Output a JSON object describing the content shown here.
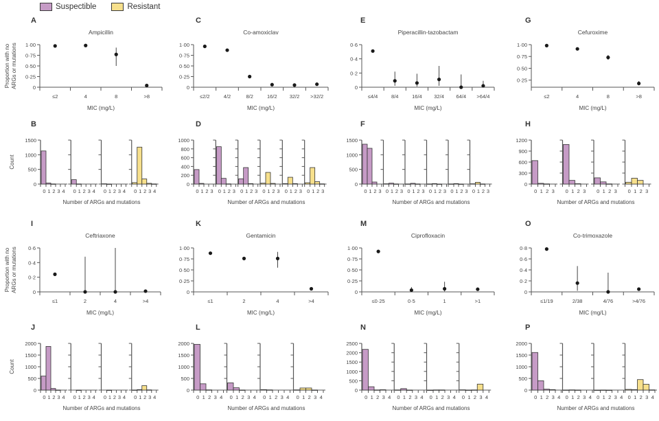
{
  "legend": [
    {
      "label": "Suspectible",
      "color": "#c69bc6"
    },
    {
      "label": "Resistant",
      "color": "#f7e08c"
    }
  ],
  "colors": {
    "susceptible": "#c69bc6",
    "resistant": "#f7e08c",
    "axis": "#555555",
    "text": "#444444",
    "bar_edge": "#333333"
  },
  "chart_data": [
    {
      "panel": "A",
      "type": "scatter",
      "title": "Ampicillin",
      "xlabel": "MIC (mg/L)",
      "ylabel": "Proportion with no ARGs or mutations",
      "categories": [
        "≤2",
        "4",
        "8",
        ">8"
      ],
      "ylim": [
        0,
        1
      ],
      "yticks": [
        "0",
        "0·25",
        "0·50",
        "0·75",
        "1·00"
      ],
      "ytick_values": [
        0,
        0.25,
        0.5,
        0.75,
        1
      ],
      "values": [
        0.97,
        0.98,
        0.77,
        0.04
      ],
      "err_low": [
        0.96,
        0.97,
        0.5,
        0.03
      ],
      "err_high": [
        0.98,
        0.99,
        0.93,
        0.06
      ]
    },
    {
      "panel": "B",
      "type": "bar",
      "xlabel": "Number of ARGs and mutations",
      "ylabel": "Count",
      "ylim": [
        0,
        1500
      ],
      "yticks": [
        "0",
        "500",
        "1000",
        "1500"
      ],
      "ytick_values": [
        0,
        500,
        1000,
        1500
      ],
      "x": [
        "0",
        "1",
        "2",
        "3",
        "4"
      ],
      "groups": [
        {
          "mic": "≤2",
          "class": "susceptible",
          "values": [
            1130,
            35,
            5,
            0,
            0
          ]
        },
        {
          "mic": "4",
          "class": "susceptible",
          "values": [
            150,
            5,
            0,
            0,
            0
          ]
        },
        {
          "mic": "8",
          "class": "susceptible",
          "values": [
            10,
            2,
            0,
            0,
            0
          ]
        },
        {
          "mic": ">8",
          "class": "resistant",
          "values": [
            50,
            1260,
            175,
            25,
            5
          ]
        }
      ]
    },
    {
      "panel": "C",
      "type": "scatter",
      "title": "Co-amoxiclav",
      "xlabel": "MIC (mg/L)",
      "ylabel": "",
      "categories": [
        "≤2/2",
        "4/2",
        "8/2",
        "16/2",
        "32/2",
        ">32/2"
      ],
      "ylim": [
        0,
        1
      ],
      "yticks": [
        "0",
        "0·25",
        "0·50",
        "0·75",
        "1·00"
      ],
      "ytick_values": [
        0,
        0.25,
        0.5,
        0.75,
        1
      ],
      "values": [
        0.96,
        0.87,
        0.25,
        0.06,
        0.05,
        0.07
      ],
      "err_low": [
        0.95,
        0.85,
        0.22,
        0.04,
        0.03,
        0.05
      ],
      "err_high": [
        0.97,
        0.89,
        0.28,
        0.08,
        0.08,
        0.09
      ]
    },
    {
      "panel": "D",
      "type": "bar",
      "xlabel": "Number of ARGs and mutations",
      "ylabel": "",
      "ylim": [
        0,
        1000
      ],
      "yticks": [
        "0",
        "200",
        "400",
        "600",
        "800",
        "1000"
      ],
      "ytick_values": [
        0,
        200,
        400,
        600,
        800,
        1000
      ],
      "x": [
        "0",
        "1",
        "2",
        "3"
      ],
      "groups": [
        {
          "mic": "≤2/2",
          "class": "susceptible",
          "values": [
            330,
            15,
            0,
            0
          ]
        },
        {
          "mic": "4/2",
          "class": "susceptible",
          "values": [
            850,
            130,
            5,
            0
          ]
        },
        {
          "mic": "8/2",
          "class": "susceptible",
          "values": [
            120,
            375,
            10,
            0
          ]
        },
        {
          "mic": "16/2",
          "class": "resistant",
          "values": [
            20,
            265,
            15,
            0
          ]
        },
        {
          "mic": "32/2",
          "class": "resistant",
          "values": [
            10,
            155,
            10,
            0
          ]
        },
        {
          "mic": ">32/2",
          "class": "resistant",
          "values": [
            30,
            375,
            55,
            5
          ]
        }
      ]
    },
    {
      "panel": "E",
      "type": "scatter",
      "title": "Piperacillin-tazobactam",
      "xlabel": "MIC (mg/L)",
      "ylabel": "",
      "categories": [
        "≤4/4",
        "8/4",
        "16/4",
        "32/4",
        "64/4",
        ">64/4"
      ],
      "ylim": [
        0,
        0.6
      ],
      "yticks": [
        "0",
        "0·2",
        "0·4",
        "0·6"
      ],
      "ytick_values": [
        0,
        0.2,
        0.4,
        0.6
      ],
      "values": [
        0.51,
        0.09,
        0.06,
        0.11,
        0.0,
        0.02
      ],
      "err_low": [
        0.5,
        0.02,
        0.01,
        0.02,
        0.0,
        0.0
      ],
      "err_high": [
        0.52,
        0.22,
        0.19,
        0.3,
        0.18,
        0.09
      ]
    },
    {
      "panel": "F",
      "type": "bar",
      "xlabel": "Number of ARGs and mutations",
      "ylabel": "",
      "ylim": [
        0,
        1500
      ],
      "yticks": [
        "0",
        "500",
        "1000",
        "1500"
      ],
      "ytick_values": [
        0,
        500,
        1000,
        1500
      ],
      "x": [
        "0",
        "1",
        "2",
        "3"
      ],
      "groups": [
        {
          "mic": "≤4/4",
          "class": "susceptible",
          "values": [
            1360,
            1220,
            70,
            0
          ]
        },
        {
          "mic": "8/4",
          "class": "susceptible",
          "values": [
            10,
            30,
            5,
            0
          ]
        },
        {
          "mic": "16/4",
          "class": "susceptible",
          "values": [
            5,
            25,
            5,
            0
          ]
        },
        {
          "mic": "32/4",
          "class": "resistant",
          "values": [
            5,
            15,
            2,
            0
          ]
        },
        {
          "mic": "64/4",
          "class": "resistant",
          "values": [
            5,
            15,
            2,
            0
          ]
        },
        {
          "mic": ">64/4",
          "class": "resistant",
          "values": [
            10,
            60,
            5,
            0
          ]
        }
      ]
    },
    {
      "panel": "G",
      "type": "scatter",
      "title": "Cefuroxime",
      "xlabel": "MIC (mg/L)",
      "ylabel": "",
      "categories": [
        "≤2",
        "4",
        "8",
        ">8"
      ],
      "ylim": [
        0.1,
        1
      ],
      "yticks": [
        "0·25",
        "0·50",
        "0·75",
        "1·00"
      ],
      "ytick_values": [
        0.25,
        0.5,
        0.75,
        1
      ],
      "values": [
        0.98,
        0.91,
        0.73,
        0.18
      ],
      "err_low": [
        0.97,
        0.9,
        0.68,
        0.14
      ],
      "err_high": [
        0.99,
        0.92,
        0.78,
        0.23
      ]
    },
    {
      "panel": "H",
      "type": "bar",
      "xlabel": "Number of ARGs and mutations",
      "ylabel": "",
      "ylim": [
        0,
        1200
      ],
      "yticks": [
        "0",
        "300",
        "600",
        "900",
        "1200"
      ],
      "ytick_values": [
        0,
        300,
        600,
        900,
        1200
      ],
      "x": [
        "0",
        "1",
        "2",
        "3"
      ],
      "groups": [
        {
          "mic": "≤2",
          "class": "susceptible",
          "values": [
            640,
            20,
            5,
            0
          ]
        },
        {
          "mic": "4",
          "class": "susceptible",
          "values": [
            1080,
            100,
            10,
            0
          ]
        },
        {
          "mic": "8",
          "class": "susceptible",
          "values": [
            170,
            60,
            5,
            0
          ]
        },
        {
          "mic": ">8",
          "class": "resistant",
          "values": [
            50,
            160,
            100,
            0
          ]
        }
      ]
    },
    {
      "panel": "I",
      "type": "scatter",
      "title": "Ceftriaxone",
      "xlabel": "MIC (mg/L)",
      "ylabel": "Proportion with no ARGs or mutations",
      "categories": [
        "≤1",
        "2",
        "4",
        ">4"
      ],
      "ylim": [
        0,
        0.6
      ],
      "yticks": [
        "0",
        "0·2",
        "0·4",
        "0·6"
      ],
      "ytick_values": [
        0,
        0.2,
        0.4,
        0.6
      ],
      "values": [
        0.24,
        0.0,
        0.0,
        0.01
      ],
      "err_low": [
        0.23,
        0.0,
        0.0,
        0.0
      ],
      "err_high": [
        0.25,
        0.48,
        0.6,
        0.02
      ]
    },
    {
      "panel": "J",
      "type": "bar",
      "xlabel": "Number of ARGs and mutations",
      "ylabel": "Count",
      "ylim": [
        0,
        2000
      ],
      "yticks": [
        "0",
        "500",
        "1000",
        "1500",
        "2000"
      ],
      "ytick_values": [
        0,
        500,
        1000,
        1500,
        2000
      ],
      "x": [
        "0",
        "1",
        "2",
        "3",
        "4"
      ],
      "groups": [
        {
          "mic": "≤1",
          "class": "susceptible",
          "values": [
            600,
            1870,
            70,
            5,
            0
          ]
        },
        {
          "mic": "2",
          "class": "susceptible",
          "values": [
            0,
            2,
            0,
            0,
            0
          ]
        },
        {
          "mic": "4",
          "class": "susceptible",
          "values": [
            0,
            2,
            0,
            0,
            0
          ]
        },
        {
          "mic": ">4",
          "class": "resistant",
          "values": [
            5,
            20,
            190,
            10,
            0
          ]
        }
      ]
    },
    {
      "panel": "K",
      "type": "scatter",
      "title": "Gentamicin",
      "xlabel": "MIC (mg/L)",
      "ylabel": "",
      "categories": [
        "≤1",
        "2",
        "4",
        ">4"
      ],
      "ylim": [
        0,
        1
      ],
      "yticks": [
        "0",
        "0·25",
        "0·50",
        "0·75",
        "1·00"
      ],
      "ytick_values": [
        0,
        0.25,
        0.5,
        0.75,
        1
      ],
      "values": [
        0.88,
        0.76,
        0.76,
        0.07
      ],
      "err_low": [
        0.87,
        0.73,
        0.55,
        0.04
      ],
      "err_high": [
        0.89,
        0.79,
        0.91,
        0.1
      ]
    },
    {
      "panel": "L",
      "type": "bar",
      "xlabel": "Number of ARGs and mutations",
      "ylabel": "",
      "ylim": [
        0,
        2000
      ],
      "yticks": [
        "0",
        "500",
        "1000",
        "1500",
        "2000"
      ],
      "ytick_values": [
        0,
        500,
        1000,
        1500,
        2000
      ],
      "x": [
        "0",
        "1",
        "2",
        "3",
        "4"
      ],
      "groups": [
        {
          "mic": "≤1",
          "class": "susceptible",
          "values": [
            1960,
            270,
            10,
            0,
            0
          ]
        },
        {
          "mic": "2",
          "class": "susceptible",
          "values": [
            310,
            100,
            5,
            0,
            0
          ]
        },
        {
          "mic": "4",
          "class": "susceptible",
          "values": [
            20,
            10,
            0,
            0,
            0
          ]
        },
        {
          "mic": ">4",
          "class": "resistant",
          "values": [
            10,
            90,
            90,
            5,
            0
          ]
        }
      ]
    },
    {
      "panel": "M",
      "type": "scatter",
      "title": "Ciprofloxacin",
      "xlabel": "MIC (mg/L)",
      "ylabel": "",
      "categories": [
        "≤0·25",
        "0·5",
        "1",
        ">1"
      ],
      "ylim": [
        0,
        1
      ],
      "yticks": [
        "0",
        "0·25",
        "0·50",
        "0·75",
        "1·00"
      ],
      "ytick_values": [
        0,
        0.25,
        0.5,
        0.75,
        1
      ],
      "values": [
        0.92,
        0.04,
        0.07,
        0.06
      ],
      "err_low": [
        0.91,
        0.01,
        0.01,
        0.05
      ],
      "err_high": [
        0.93,
        0.11,
        0.23,
        0.07
      ]
    },
    {
      "panel": "N",
      "type": "bar",
      "xlabel": "Number of ARGs and mutations",
      "ylabel": "",
      "ylim": [
        0,
        2500
      ],
      "yticks": [
        "0",
        "500",
        "1000",
        "1500",
        "2000",
        "2500"
      ],
      "ytick_values": [
        0,
        500,
        1000,
        1500,
        2000,
        2500
      ],
      "x": [
        "0",
        "1",
        "2",
        "3",
        "4"
      ],
      "groups": [
        {
          "mic": "≤0·25",
          "class": "susceptible",
          "values": [
            2180,
            180,
            10,
            20,
            0
          ]
        },
        {
          "mic": "0·5",
          "class": "susceptible",
          "values": [
            10,
            80,
            5,
            0,
            0
          ]
        },
        {
          "mic": "1",
          "class": "susceptible",
          "values": [
            2,
            10,
            10,
            0,
            0
          ]
        },
        {
          "mic": ">1",
          "class": "resistant",
          "values": [
            15,
            5,
            10,
            320,
            0
          ]
        }
      ]
    },
    {
      "panel": "O",
      "type": "scatter",
      "title": "Co-trimoxazole",
      "xlabel": "MIC (mg/L)",
      "ylabel": "",
      "categories": [
        "≤1/19",
        "2/38",
        "4/76",
        ">4/76"
      ],
      "ylim": [
        0,
        0.8
      ],
      "yticks": [
        "0",
        "0·2",
        "0·4",
        "0·6",
        "0·8"
      ],
      "ytick_values": [
        0,
        0.2,
        0.4,
        0.6,
        0.8
      ],
      "values": [
        0.78,
        0.16,
        0.0,
        0.05
      ],
      "err_low": [
        0.77,
        0.02,
        0.0,
        0.04
      ],
      "err_high": [
        0.79,
        0.47,
        0.35,
        0.06
      ]
    },
    {
      "panel": "P",
      "type": "bar",
      "xlabel": "Number of ARGs and mutations",
      "ylabel": "",
      "ylim": [
        0,
        2000
      ],
      "yticks": [
        "0",
        "500",
        "1000",
        "1500",
        "2000"
      ],
      "ytick_values": [
        0,
        500,
        1000,
        1500,
        2000
      ],
      "x": [
        "0",
        "1",
        "2",
        "3",
        "4"
      ],
      "groups": [
        {
          "mic": "≤1/19",
          "class": "susceptible",
          "values": [
            1610,
            400,
            40,
            20,
            0
          ]
        },
        {
          "mic": "2/38",
          "class": "susceptible",
          "values": [
            5,
            10,
            5,
            0,
            0
          ]
        },
        {
          "mic": "4/76",
          "class": "susceptible",
          "values": [
            2,
            5,
            2,
            0,
            0
          ]
        },
        {
          "mic": ">4/76",
          "class": "resistant",
          "values": [
            30,
            20,
            450,
            250,
            10
          ]
        }
      ]
    }
  ]
}
